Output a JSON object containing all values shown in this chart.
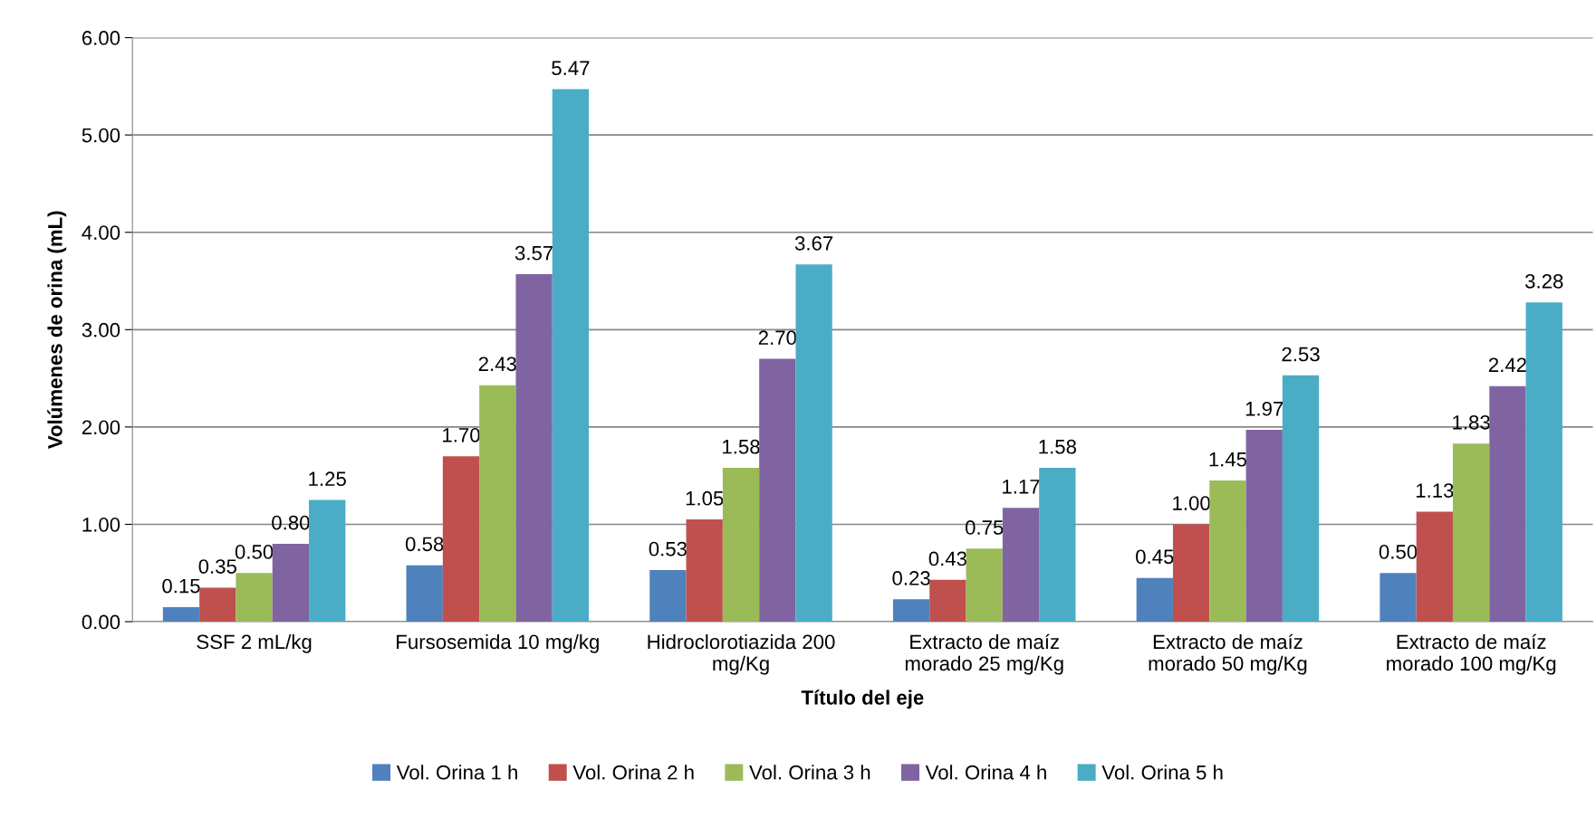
{
  "chart_data": {
    "type": "bar",
    "xlabel": "Título del eje",
    "ylabel": "Volúmenes de orina (mL)",
    "categories": [
      "SSF 2 mL/kg",
      "Fursosemida 10 mg/kg",
      "Hidroclorotiazida 200 mg/Kg",
      "Extracto de maíz morado 25 mg/Kg",
      "Extracto de maíz morado 50 mg/Kg",
      "Extracto de maíz morado 100 mg/Kg"
    ],
    "series": [
      {
        "name": "Vol. Orina 1 h",
        "color": "#4f81bd",
        "values": [
          0.15,
          0.58,
          0.53,
          0.23,
          0.45,
          0.5
        ],
        "value_labels": [
          "0.15",
          "0.58",
          "0.53",
          "0.23",
          "0.45",
          "0.50"
        ]
      },
      {
        "name": "Vol. Orina 2 h",
        "color": "#c0504d",
        "values": [
          0.35,
          1.7,
          1.05,
          0.43,
          1.0,
          1.13
        ],
        "value_labels": [
          "0.35",
          "1.70",
          "1.05",
          "0.43",
          "1.00",
          "1.13"
        ]
      },
      {
        "name": "Vol. Orina 3 h",
        "color": "#9bbb59",
        "values": [
          0.5,
          2.43,
          1.58,
          0.75,
          1.45,
          1.83
        ],
        "value_labels": [
          "0.50",
          "2.43",
          "1.58",
          "0.75",
          "1.45",
          "1.83"
        ]
      },
      {
        "name": "Vol. Orina 4 h",
        "color": "#8064a2",
        "values": [
          0.8,
          3.57,
          2.7,
          1.17,
          1.97,
          2.42
        ],
        "value_labels": [
          "0.80",
          "3.57",
          "2.70",
          "1.17",
          "1.97",
          "2.42"
        ]
      },
      {
        "name": "Vol. Orina 5 h",
        "color": "#4bacc6",
        "values": [
          1.25,
          5.47,
          3.67,
          1.58,
          2.53,
          3.28
        ],
        "value_labels": [
          "1.25",
          "5.47",
          "3.67",
          "1.58",
          "2.53",
          "3.28"
        ]
      }
    ],
    "ylim": [
      0,
      6
    ],
    "yticks": [
      {
        "value": 0,
        "label": "0.00"
      },
      {
        "value": 1,
        "label": "1.00"
      },
      {
        "value": 2,
        "label": "2.00"
      },
      {
        "value": 3,
        "label": "3.00"
      },
      {
        "value": 4,
        "label": "4.00"
      },
      {
        "value": 5,
        "label": "5.00"
      },
      {
        "value": 6,
        "label": "6.00"
      }
    ],
    "grid": "y",
    "legend": "bottom"
  }
}
